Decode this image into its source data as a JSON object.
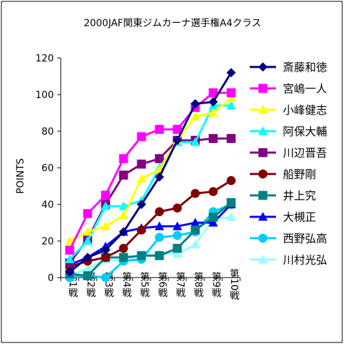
{
  "chart_data": {
    "type": "line",
    "title": "2000JAF関東ジムカーナ選手権A4クラス",
    "ylabel": "POINTS",
    "xlabel": "",
    "ylim": [
      0,
      120
    ],
    "yticks": [
      0,
      20,
      40,
      60,
      80,
      100,
      120
    ],
    "grid": false,
    "legend_position": "right",
    "categories": [
      "第1戦",
      "第2戦",
      "第3戦",
      "第4戦",
      "第5戦",
      "第6戦",
      "第7戦",
      "第8戦",
      "第9戦",
      "第10戦"
    ],
    "series": [
      {
        "name": "斎藤和徳",
        "color": "#000080",
        "marker": "diamond",
        "values": [
          3,
          11,
          15,
          25,
          40,
          55,
          75,
          95,
          96,
          112
        ]
      },
      {
        "name": "宮嶋一人",
        "color": "#FF00FF",
        "marker": "square",
        "values": [
          15,
          35,
          45,
          65,
          77,
          81,
          81,
          93,
          101,
          101
        ]
      },
      {
        "name": "小峰健志",
        "color": "#FFFF00",
        "marker": "triangle",
        "values": [
          20,
          25,
          28,
          34,
          54,
          59,
          75,
          88,
          90,
          98
        ]
      },
      {
        "name": "阿保大輔",
        "color": "#00FFFF",
        "marker": "triangle",
        "values": [
          10,
          20,
          39,
          39,
          42,
          60,
          74,
          74,
          94,
          94
        ]
      },
      {
        "name": "川辺晋吾",
        "color": "#800080",
        "marker": "square",
        "values": [
          8,
          21,
          40,
          56,
          62,
          65,
          75,
          75,
          76,
          76
        ]
      },
      {
        "name": "船野剛",
        "color": "#800000",
        "marker": "circle",
        "values": [
          6,
          9,
          11,
          16,
          26,
          36,
          38,
          46,
          47,
          53
        ]
      },
      {
        "name": "井上究",
        "color": "#008080",
        "marker": "square",
        "values": [
          2,
          1,
          11,
          11,
          12,
          12,
          16,
          26,
          33,
          41
        ]
      },
      {
        "name": "大槻正",
        "color": "#0000FF",
        "marker": "triangle",
        "values": [
          7,
          11,
          17,
          25,
          27,
          28,
          28,
          30,
          30,
          40
        ]
      },
      {
        "name": "西野弘高",
        "color": "#00CCFF",
        "marker": "circle",
        "values": [
          0,
          1,
          0,
          9,
          10,
          22,
          23,
          25,
          36,
          40
        ]
      },
      {
        "name": "川村光弘",
        "color": "#99FFFF",
        "marker": "triangle",
        "values": [
          1,
          5,
          10,
          9,
          12,
          13,
          13,
          18,
          32,
          33
        ]
      }
    ]
  }
}
